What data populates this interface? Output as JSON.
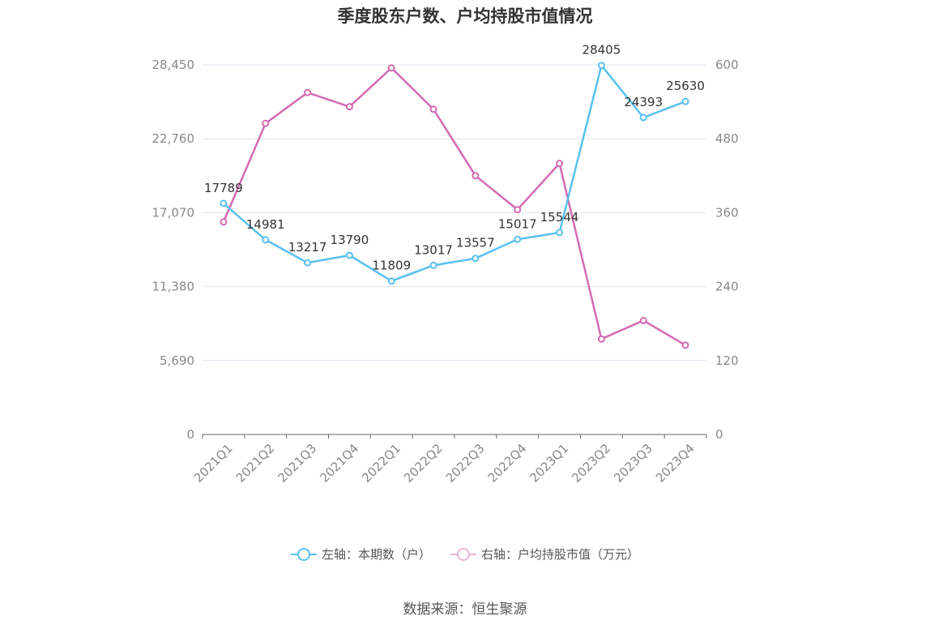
{
  "chart_data": {
    "type": "line",
    "title": "季度股东户数、户均持股市值情况",
    "categories": [
      "2021Q1",
      "2021Q2",
      "2021Q3",
      "2021Q4",
      "2022Q1",
      "2022Q2",
      "2022Q3",
      "2022Q4",
      "2023Q1",
      "2023Q2",
      "2023Q3",
      "2023Q4"
    ],
    "left_axis": {
      "ylim": [
        0,
        28450
      ],
      "ticks": [
        "0",
        "5,690",
        "11,380",
        "17,070",
        "22,760",
        "28,450"
      ]
    },
    "right_axis": {
      "ylim": [
        0,
        600
      ],
      "ticks": [
        "0",
        "120",
        "240",
        "360",
        "480",
        "600"
      ]
    },
    "series": [
      {
        "name": "左轴：本期数（户）",
        "axis": "left",
        "color": "#5bc0f0",
        "values": [
          17789,
          14981,
          13217,
          13790,
          11809,
          13017,
          13557,
          15017,
          15544,
          28405,
          24393,
          25630
        ],
        "show_labels": true
      },
      {
        "name": "右轴：户均持股市值（万元）",
        "axis": "right",
        "color": "#d46bb3",
        "values": [
          345,
          505,
          555,
          532,
          595,
          528,
          420,
          365,
          440,
          155,
          185,
          145
        ],
        "show_labels": false
      }
    ],
    "grid": true,
    "legend_position": "bottom"
  },
  "legend": {
    "left_label": "左轴：本期数（户）",
    "right_label": "右轴：户均持股市值（万元）"
  },
  "source": "数据来源：恒生聚源"
}
